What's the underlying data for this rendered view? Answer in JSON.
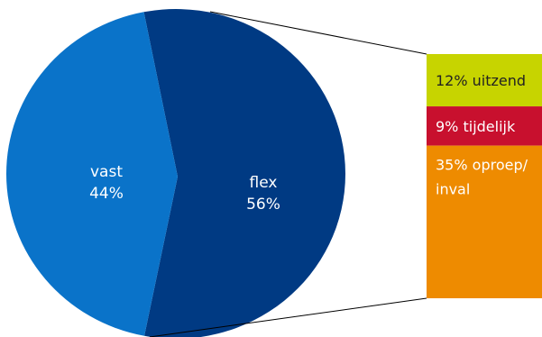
{
  "chart_data": {
    "type": "pie",
    "title": "",
    "pie": {
      "slices": [
        {
          "label": "vast",
          "value": 44,
          "value_label": "44%",
          "color": "#0a73c9"
        },
        {
          "label": "flex",
          "value": 56,
          "value_label": "56%",
          "color": "#003a83"
        }
      ]
    },
    "breakdown_of": "flex",
    "breakdown": [
      {
        "label": "12% uitzend",
        "value": 12,
        "color": "#c7d400",
        "text_color": "#222222"
      },
      {
        "label": "9% tijdelijk",
        "value": 9,
        "color": "#c8102e",
        "text_color": "#ffffff"
      },
      {
        "label": "35% oproep/ inval",
        "value": 35,
        "color": "#ee8b00",
        "text_color": "#ffffff"
      }
    ]
  }
}
